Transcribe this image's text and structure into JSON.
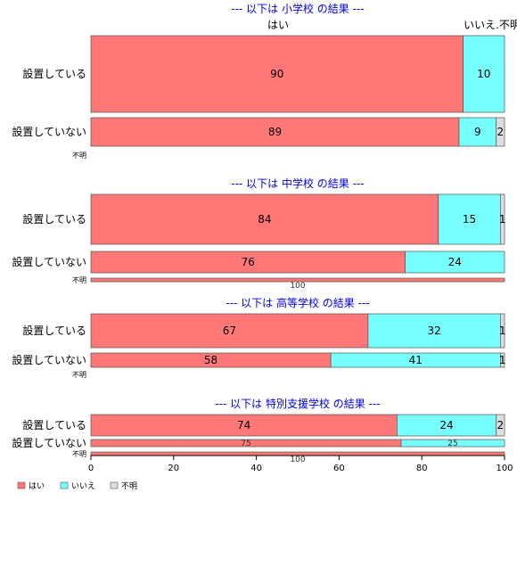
{
  "chart_data": {
    "type": "bar",
    "orientation": "horizontal",
    "stacked": true,
    "percent": true,
    "xlim": [
      0,
      100
    ],
    "x_ticks": [
      "0",
      "20",
      "40",
      "60",
      "80",
      "100"
    ],
    "series_names": [
      "はい",
      "いいえ",
      "不明"
    ],
    "colors": {
      "yes": "#ff7777",
      "no": "#77ffff",
      "unknown": "#dddddd"
    },
    "top_legend": [
      "はい",
      "いいえ",
      "不明"
    ],
    "legend_position": "bottom-left",
    "sections": [
      {
        "title": "--- 以下は 小学校 の結果 ---",
        "rows": [
          {
            "label": "設置している",
            "values": [
              90,
              10,
              0
            ],
            "value_labels": [
              "90",
              "10",
              ""
            ]
          },
          {
            "label": "設置していない",
            "values": [
              89,
              9,
              2
            ],
            "value_labels": [
              "89",
              "9",
              "2"
            ]
          },
          {
            "label": "不明",
            "values": [
              0,
              0,
              0
            ],
            "value_labels": [
              "",
              "",
              ""
            ]
          }
        ]
      },
      {
        "title": "--- 以下は 中学校 の結果 ---",
        "rows": [
          {
            "label": "設置している",
            "values": [
              84,
              15,
              1
            ],
            "value_labels": [
              "84",
              "15",
              "1"
            ]
          },
          {
            "label": "設置していない",
            "values": [
              76,
              24,
              0
            ],
            "value_labels": [
              "76",
              "24",
              ""
            ]
          },
          {
            "label": "不明",
            "values": [
              100,
              0,
              0
            ],
            "value_labels": [
              "100",
              "",
              ""
            ]
          }
        ]
      },
      {
        "title": "--- 以下は 高等学校 の結果 ---",
        "rows": [
          {
            "label": "設置している",
            "values": [
              67,
              32,
              1
            ],
            "value_labels": [
              "67",
              "32",
              "1"
            ]
          },
          {
            "label": "設置していない",
            "values": [
              58,
              41,
              1
            ],
            "value_labels": [
              "58",
              "41",
              "1"
            ]
          },
          {
            "label": "不明",
            "values": [
              0,
              0,
              0
            ],
            "value_labels": [
              "",
              "",
              ""
            ]
          }
        ]
      },
      {
        "title": "--- 以下は 特別支援学校 の結果 ---",
        "rows": [
          {
            "label": "設置している",
            "values": [
              74,
              24,
              2
            ],
            "value_labels": [
              "74",
              "24",
              "2"
            ]
          },
          {
            "label": "設置していない",
            "values": [
              75,
              25,
              0
            ],
            "value_labels": [
              "75",
              "25",
              ""
            ]
          },
          {
            "label": "不明",
            "values": [
              100,
              0,
              0
            ],
            "value_labels": [
              "100",
              "",
              ""
            ]
          }
        ]
      }
    ]
  }
}
